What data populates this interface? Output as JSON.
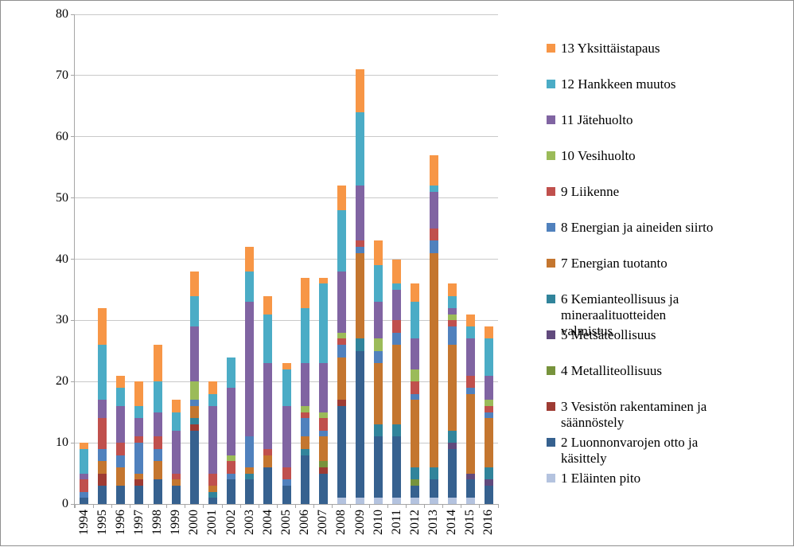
{
  "chart_data": {
    "type": "bar",
    "stacked": true,
    "title": "",
    "xlabel": "",
    "ylabel": "",
    "ylim": [
      0,
      80
    ],
    "y_ticks": [
      0,
      10,
      20,
      30,
      40,
      50,
      60,
      70,
      80
    ],
    "grid": true,
    "legend_position": "right",
    "categories": [
      "1994",
      "1995",
      "1996",
      "1997",
      "1998",
      "1999",
      "2000",
      "2001",
      "2002",
      "2003",
      "2004",
      "2005",
      "2006",
      "2007",
      "2008",
      "2009",
      "2010",
      "2011",
      "2012",
      "2013",
      "2014",
      "2015",
      "2016"
    ],
    "totals": [
      10,
      32,
      21,
      20,
      26,
      17,
      38,
      20,
      24,
      42,
      34,
      23,
      37,
      37,
      52,
      71,
      43,
      40,
      36,
      57,
      36,
      31,
      29
    ],
    "series": [
      {
        "name": "1 Eläinten pito",
        "color": "#b4c3df",
        "values": [
          0,
          0,
          0,
          0,
          0,
          0,
          0,
          0,
          0,
          0,
          0,
          0,
          0,
          0,
          1,
          1,
          1,
          1,
          1,
          1,
          1,
          1,
          0
        ]
      },
      {
        "name": "2 Luonnonvarojen otto ja käsittely",
        "color": "#36618f",
        "values": [
          1,
          3,
          3,
          3,
          4,
          3,
          12,
          1,
          4,
          4,
          6,
          3,
          8,
          5,
          15,
          24,
          10,
          10,
          2,
          3,
          8,
          3,
          3
        ]
      },
      {
        "name": "3 Vesistön rakentaminen ja säännöstely",
        "color": "#9e3b33",
        "values": [
          0,
          2,
          0,
          1,
          0,
          0,
          1,
          0,
          0,
          0,
          0,
          0,
          0,
          1,
          1,
          0,
          0,
          0,
          0,
          0,
          0,
          0,
          0
        ]
      },
      {
        "name": "4 Metalliteollisuus",
        "color": "#77933c",
        "values": [
          0,
          0,
          0,
          0,
          0,
          0,
          0,
          0,
          0,
          0,
          0,
          0,
          0,
          1,
          0,
          0,
          0,
          0,
          1,
          0,
          0,
          0,
          0
        ]
      },
      {
        "name": "5 Metsäteollisuus",
        "color": "#614a7d",
        "values": [
          0,
          0,
          0,
          0,
          0,
          0,
          0,
          0,
          0,
          0,
          0,
          0,
          0,
          0,
          0,
          0,
          0,
          0,
          0,
          0,
          1,
          1,
          1
        ]
      },
      {
        "name": "6 Kemianteollisuus ja mineraalituotteiden valmistus",
        "color": "#31849b",
        "values": [
          0,
          0,
          0,
          0,
          0,
          0,
          1,
          1,
          0,
          1,
          0,
          0,
          1,
          0,
          0,
          2,
          2,
          2,
          2,
          2,
          2,
          0,
          2
        ]
      },
      {
        "name": "7 Energian tuotanto",
        "color": "#c4762f",
        "values": [
          0,
          2,
          3,
          1,
          3,
          1,
          2,
          1,
          0,
          1,
          2,
          0,
          2,
          4,
          7,
          14,
          10,
          13,
          11,
          35,
          14,
          13,
          8
        ]
      },
      {
        "name": "8 Energian ja aineiden siirto",
        "color": "#5081bd",
        "values": [
          1,
          2,
          2,
          5,
          2,
          0,
          1,
          0,
          1,
          5,
          0,
          1,
          3,
          1,
          2,
          1,
          2,
          2,
          1,
          2,
          3,
          1,
          1
        ]
      },
      {
        "name": "9 Liikenne",
        "color": "#c0504d",
        "values": [
          2,
          5,
          2,
          1,
          2,
          1,
          0,
          2,
          2,
          0,
          1,
          2,
          1,
          2,
          1,
          1,
          0,
          2,
          2,
          2,
          1,
          2,
          1
        ]
      },
      {
        "name": "10 Vesihuolto",
        "color": "#9bbb59",
        "values": [
          0,
          0,
          0,
          0,
          0,
          0,
          3,
          0,
          1,
          0,
          0,
          0,
          1,
          1,
          1,
          0,
          2,
          0,
          2,
          0,
          1,
          0,
          1
        ]
      },
      {
        "name": "11 Jätehuolto",
        "color": "#8064a2",
        "values": [
          1,
          3,
          6,
          3,
          4,
          7,
          9,
          11,
          11,
          22,
          14,
          10,
          7,
          8,
          10,
          9,
          6,
          5,
          5,
          6,
          1,
          6,
          4
        ]
      },
      {
        "name": "12 Hankkeen muutos",
        "color": "#4bacc6",
        "values": [
          4,
          9,
          3,
          2,
          5,
          3,
          5,
          2,
          5,
          5,
          8,
          6,
          9,
          13,
          10,
          12,
          6,
          1,
          6,
          1,
          2,
          2,
          6
        ]
      },
      {
        "name": "13 Yksittäistapaus",
        "color": "#f79646",
        "values": [
          1,
          6,
          2,
          4,
          6,
          2,
          4,
          2,
          0,
          4,
          3,
          1,
          5,
          1,
          4,
          7,
          4,
          4,
          3,
          5,
          2,
          2,
          2
        ]
      }
    ]
  },
  "legend": {
    "items": [
      {
        "lines": [
          "13 Yksittäistapaus"
        ],
        "color": "#f79646"
      },
      {
        "lines": [
          "12 Hankkeen muutos"
        ],
        "color": "#4bacc6"
      },
      {
        "lines": [
          "11 Jätehuolto"
        ],
        "color": "#8064a2"
      },
      {
        "lines": [
          "10 Vesihuolto"
        ],
        "color": "#9bbb59"
      },
      {
        "lines": [
          "9 Liikenne"
        ],
        "color": "#c0504d"
      },
      {
        "lines": [
          "8 Energian ja aineiden siirto"
        ],
        "color": "#5081bd"
      },
      {
        "lines": [
          "7 Energian tuotanto"
        ],
        "color": "#c4762f"
      },
      {
        "lines": [
          "6 Kemianteollisuus ja",
          "mineraalituotteiden",
          "valmistus"
        ],
        "color": "#31849b"
      },
      {
        "lines": [
          "5 Metsäteollisuus"
        ],
        "color": "#614a7d"
      },
      {
        "lines": [
          "4 Metalliteollisuus"
        ],
        "color": "#77933c"
      },
      {
        "lines": [
          "3 Vesistön rakentaminen ja",
          "säännöstely"
        ],
        "color": "#9e3b33"
      },
      {
        "lines": [
          "2 Luonnonvarojen otto ja",
          "käsittely"
        ],
        "color": "#36618f"
      },
      {
        "lines": [
          "1 Eläinten pito"
        ],
        "color": "#b4c3df"
      }
    ]
  },
  "style": {
    "gridline_color": "#c9c9c9",
    "axis_color": "#a6a6a6",
    "background": "#ffffff"
  }
}
